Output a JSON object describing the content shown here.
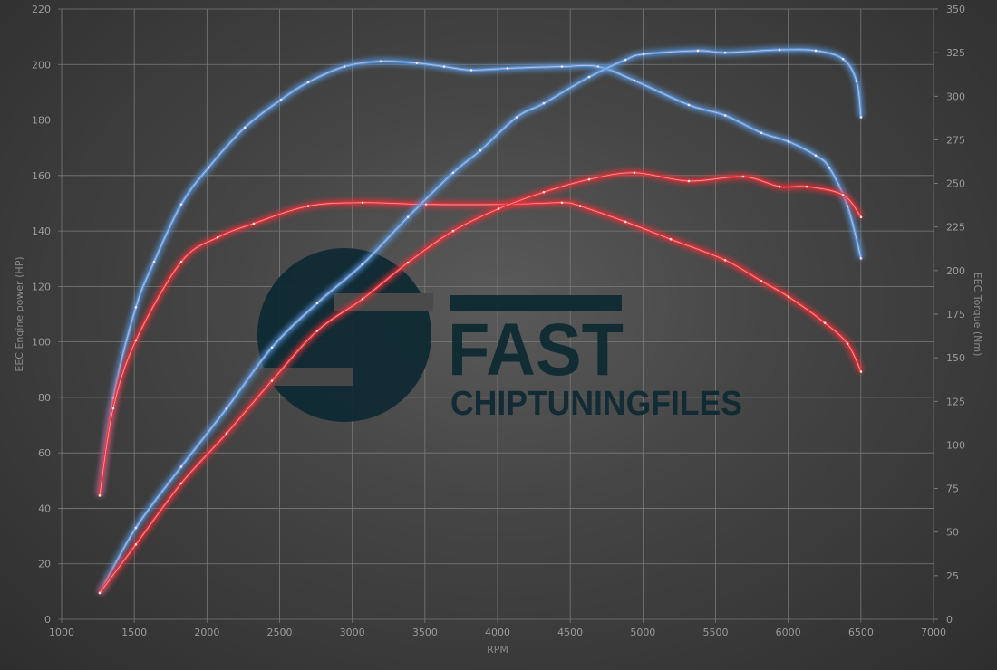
{
  "chart_data": {
    "type": "line",
    "title": "",
    "xlabel": "RPM",
    "ylabel_left": "EEC Engine power (HP)",
    "ylabel_right": "EEC Torque (Nm)",
    "xlim": [
      1000,
      7000
    ],
    "ylim_left": [
      0,
      220
    ],
    "ylim_right": [
      0,
      350
    ],
    "x_ticks": [
      1000,
      1500,
      2000,
      2500,
      3000,
      3500,
      4000,
      4500,
      5000,
      5500,
      6000,
      6500,
      7000
    ],
    "y_ticks_left": [
      0,
      20,
      40,
      60,
      80,
      100,
      120,
      140,
      160,
      180,
      200,
      220
    ],
    "y_ticks_right": [
      0,
      25,
      50,
      75,
      100,
      125,
      150,
      175,
      200,
      225,
      250,
      275,
      300,
      325,
      350
    ],
    "grid": true,
    "legend": "none",
    "series": [
      {
        "axis": "right",
        "color": "#5b9be3",
        "points": [
          [
            1262,
            71
          ],
          [
            1355,
            127
          ],
          [
            1511,
            179
          ],
          [
            1636,
            205
          ],
          [
            1823,
            238
          ],
          [
            2010,
            259
          ],
          [
            2260,
            282
          ],
          [
            2509,
            298
          ],
          [
            2697,
            308
          ],
          [
            2946,
            317
          ],
          [
            3196,
            320
          ],
          [
            3445,
            319
          ],
          [
            3632,
            317
          ],
          [
            3819,
            315
          ],
          [
            4069,
            316
          ],
          [
            4443,
            317
          ],
          [
            4692,
            317
          ],
          [
            4942,
            309
          ],
          [
            5316,
            295
          ],
          [
            5566,
            289
          ],
          [
            5815,
            279
          ],
          [
            6002,
            274
          ],
          [
            6189,
            266
          ],
          [
            6283,
            259
          ],
          [
            6408,
            237
          ],
          [
            6501,
            207
          ]
        ]
      },
      {
        "axis": "right",
        "color": "#e8333a",
        "points": [
          [
            1262,
            71
          ],
          [
            1355,
            121
          ],
          [
            1511,
            160
          ],
          [
            1823,
            205
          ],
          [
            2073,
            219
          ],
          [
            2322,
            227
          ],
          [
            2697,
            237
          ],
          [
            3071,
            239
          ],
          [
            3507,
            238
          ],
          [
            4069,
            238
          ],
          [
            4443,
            239
          ],
          [
            4568,
            237
          ],
          [
            4880,
            228
          ],
          [
            5191,
            218
          ],
          [
            5566,
            206
          ],
          [
            5815,
            194
          ],
          [
            6002,
            185
          ],
          [
            6252,
            170
          ],
          [
            6408,
            158
          ],
          [
            6501,
            142
          ]
        ]
      },
      {
        "axis": "left",
        "color": "#5b9be3",
        "points": [
          [
            1262,
            9.5
          ],
          [
            1511,
            33
          ],
          [
            1823,
            55
          ],
          [
            2135,
            76
          ],
          [
            2447,
            98
          ],
          [
            2759,
            114
          ],
          [
            3071,
            128
          ],
          [
            3383,
            145
          ],
          [
            3694,
            161
          ],
          [
            3881,
            169
          ],
          [
            4131,
            181
          ],
          [
            4318,
            186
          ],
          [
            4630,
            195.5
          ],
          [
            4880,
            201.7
          ],
          [
            5004,
            203.7
          ],
          [
            5378,
            205
          ],
          [
            5566,
            204.3
          ],
          [
            5940,
            205.3
          ],
          [
            6189,
            205
          ],
          [
            6377,
            202
          ],
          [
            6470,
            194
          ],
          [
            6501,
            181
          ]
        ]
      },
      {
        "axis": "left",
        "color": "#e8333a",
        "points": [
          [
            1262,
            9.5
          ],
          [
            1511,
            27
          ],
          [
            1823,
            49
          ],
          [
            2135,
            67
          ],
          [
            2447,
            86
          ],
          [
            2759,
            104
          ],
          [
            3071,
            115.5
          ],
          [
            3383,
            128.6
          ],
          [
            3694,
            140
          ],
          [
            4006,
            148
          ],
          [
            4318,
            154
          ],
          [
            4630,
            158.6
          ],
          [
            4942,
            161
          ],
          [
            5316,
            158
          ],
          [
            5690,
            159.6
          ],
          [
            5940,
            156
          ],
          [
            6127,
            156
          ],
          [
            6377,
            153
          ],
          [
            6501,
            145
          ]
        ]
      }
    ]
  },
  "watermark": {
    "line1": "FAST",
    "line2": "CHIPTUNINGFILES"
  }
}
